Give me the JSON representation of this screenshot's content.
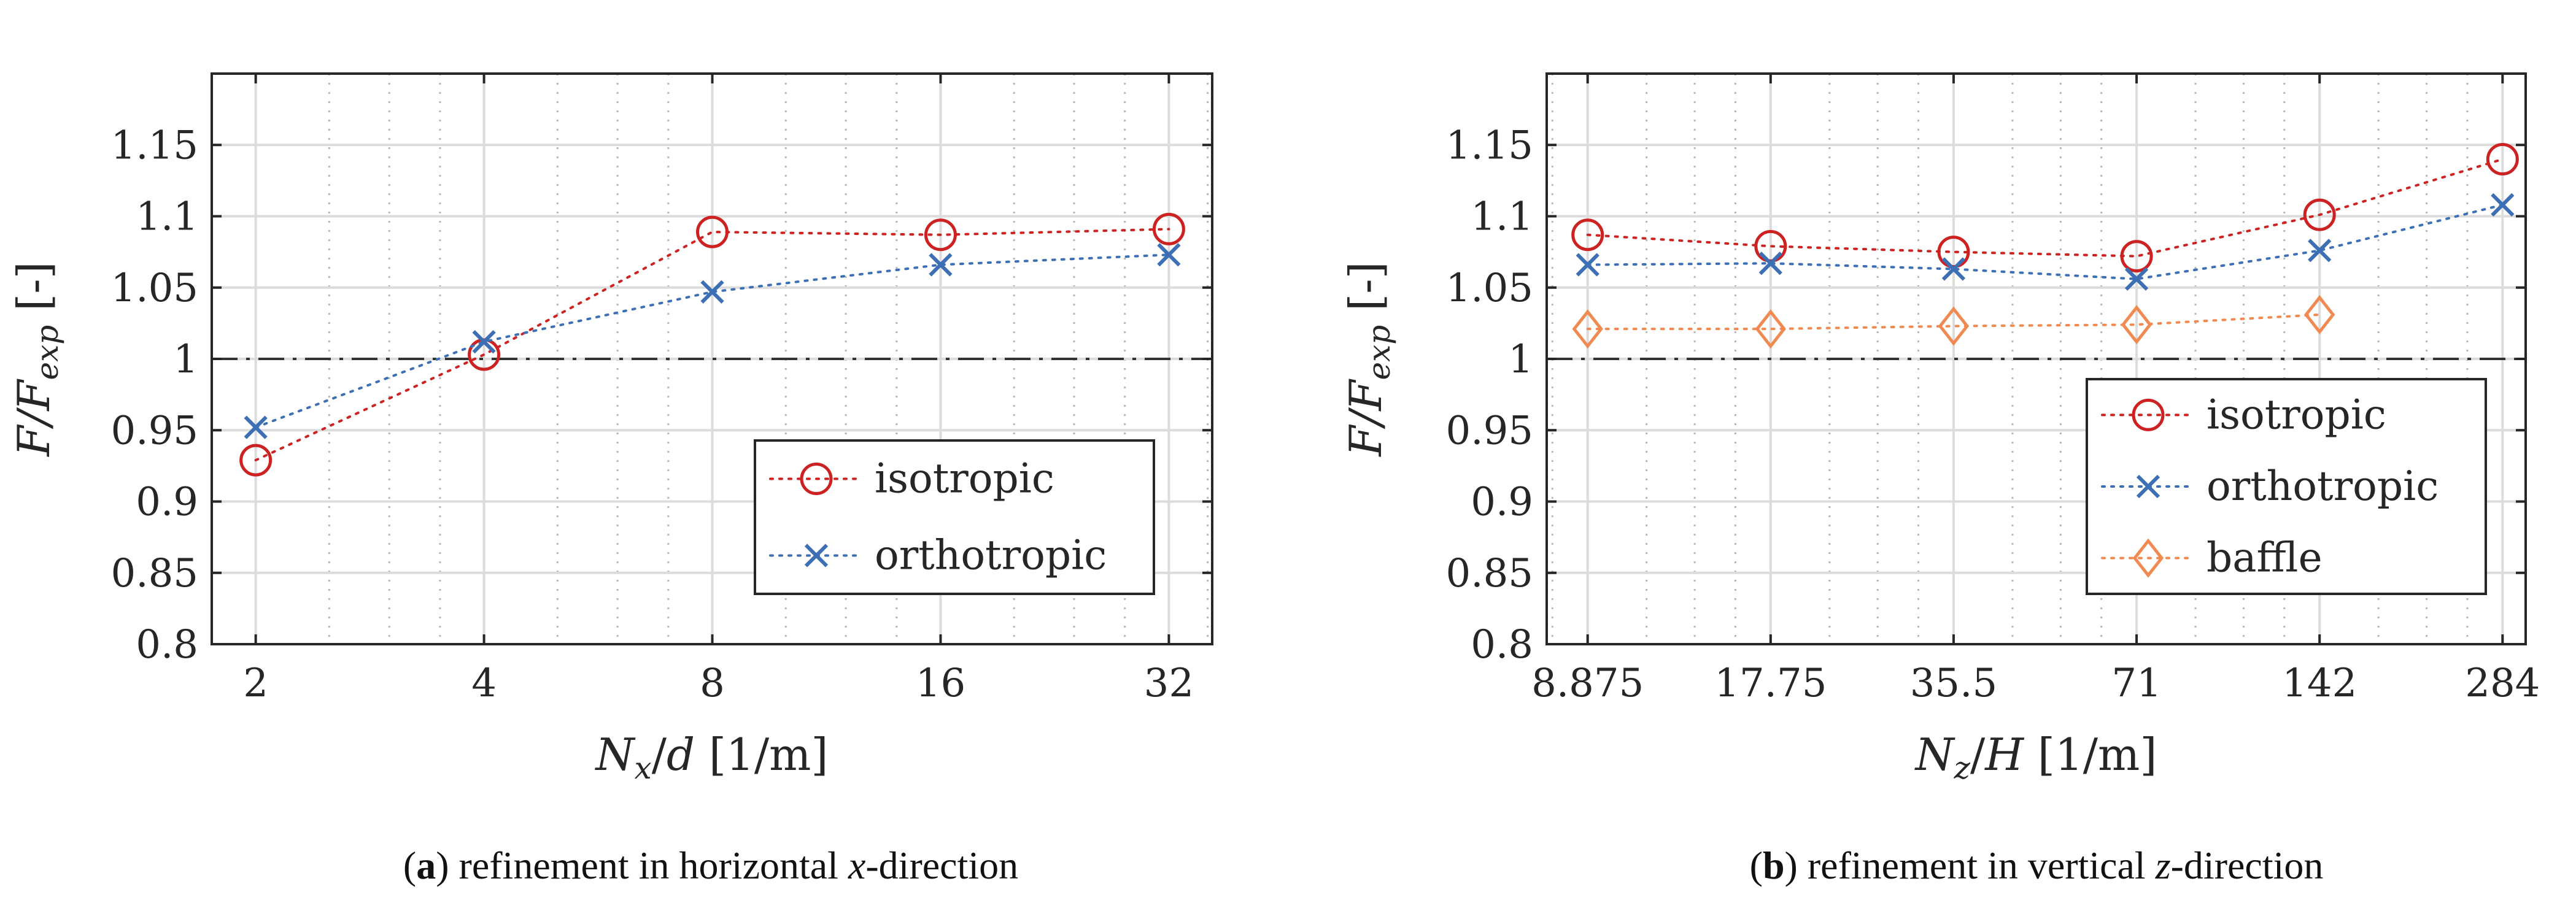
{
  "colors": {
    "isotropic": "#cc2222",
    "orthotropic": "#3d6fb5",
    "baffle": "#f08a50",
    "reference": "#333333",
    "grid_major": "#dcdcdc",
    "grid_minor": "#b8b8b8"
  },
  "chart_data": [
    {
      "type": "line",
      "panel": "a",
      "x_scale": "log2",
      "xlabel": "N_x/d [1/m]",
      "xlabel_parts": {
        "var": "N",
        "sub": "x",
        "over": "/",
        "den": "d",
        "unit": " [1/m]"
      },
      "ylabel": "F/F_exp [-]",
      "ylabel_parts": {
        "var": "F/F",
        "sub": "exp",
        "unit": " [-]"
      },
      "xlim": [
        1.75,
        36.5
      ],
      "ylim": [
        0.8,
        1.2
      ],
      "x": [
        2,
        4,
        8,
        16,
        32
      ],
      "xtick_labels": [
        "2",
        "4",
        "8",
        "16",
        "32"
      ],
      "yticks": [
        0.8,
        0.85,
        0.9,
        0.95,
        1,
        1.05,
        1.1,
        1.15
      ],
      "ytick_labels": [
        "0.8",
        "0.85",
        "0.9",
        "0.95",
        "1",
        "1.05",
        "1.1",
        "1.15"
      ],
      "reference_line": 1,
      "series": [
        {
          "name": "isotropic",
          "marker": "circle",
          "values": [
            0.929,
            1.003,
            1.089,
            1.087,
            1.091
          ]
        },
        {
          "name": "orthotropic",
          "marker": "x",
          "values": [
            0.952,
            1.012,
            1.047,
            1.066,
            1.073
          ]
        }
      ],
      "legend_position": "lower-right",
      "caption": {
        "letter": "a",
        "text_before": " refinement in horizontal ",
        "var": "x",
        "text_after": "-direction"
      }
    },
    {
      "type": "line",
      "panel": "b",
      "x_scale": "log2",
      "xlabel": "N_z/H [1/m]",
      "xlabel_parts": {
        "var": "N",
        "sub": "z",
        "over": "/",
        "den": "H",
        "unit": " [1/m]"
      },
      "ylabel": "F/F_exp [-]",
      "ylabel_parts": {
        "var": "F/F",
        "sub": "exp",
        "unit": " [-]"
      },
      "xlim": [
        7.6,
        310
      ],
      "ylim": [
        0.8,
        1.2
      ],
      "x": [
        8.875,
        17.75,
        35.5,
        71,
        142,
        284
      ],
      "xtick_labels": [
        "8.875",
        "17.75",
        "35.5",
        "71",
        "142",
        "284"
      ],
      "yticks": [
        0.8,
        0.85,
        0.9,
        0.95,
        1,
        1.05,
        1.1,
        1.15
      ],
      "ytick_labels": [
        "0.8",
        "0.85",
        "0.9",
        "0.95",
        "1",
        "1.05",
        "1.1",
        "1.15"
      ],
      "reference_line": 1,
      "series": [
        {
          "name": "isotropic",
          "marker": "circle",
          "values": [
            1.087,
            1.079,
            1.075,
            1.072,
            1.101,
            1.14
          ]
        },
        {
          "name": "orthotropic",
          "marker": "x",
          "values": [
            1.066,
            1.067,
            1.063,
            1.056,
            1.076,
            1.108
          ]
        },
        {
          "name": "baffle",
          "marker": "diamond",
          "values": [
            1.021,
            1.021,
            1.023,
            1.024,
            1.031,
            null
          ]
        }
      ],
      "legend_position": "upper-right",
      "caption": {
        "letter": "b",
        "text_before": " refinement in vertical ",
        "var": "z",
        "text_after": "-direction"
      }
    }
  ]
}
